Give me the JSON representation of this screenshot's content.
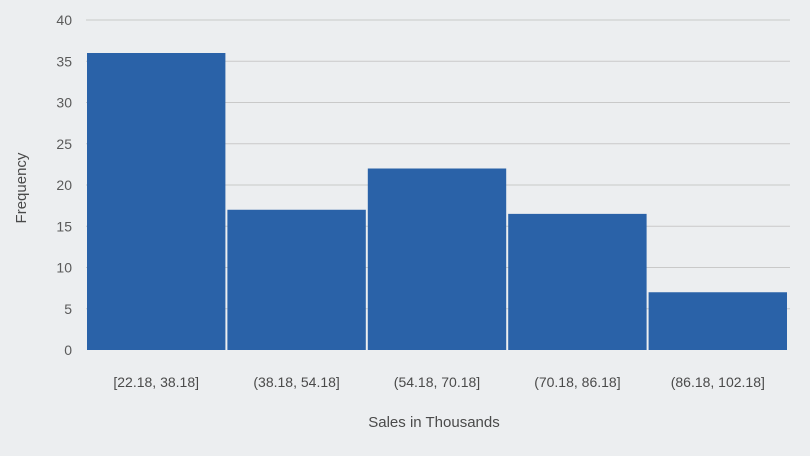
{
  "chart_data": {
    "type": "bar",
    "title": "",
    "xlabel": "Sales in Thousands",
    "ylabel": "Frequency",
    "categories": [
      "[22.18, 38.18]",
      "(38.18, 54.18]",
      "(54.18, 70.18]",
      "(70.18, 86.18]",
      "(86.18, 102.18]"
    ],
    "values": [
      36,
      17,
      22,
      16.5,
      7
    ],
    "ylim": [
      0,
      40
    ],
    "yticks": [
      "0",
      "5",
      "10",
      "15",
      "20",
      "25",
      "30",
      "35",
      "40"
    ],
    "grid": true,
    "legend": "none",
    "bar_color": "#2a62a8"
  }
}
